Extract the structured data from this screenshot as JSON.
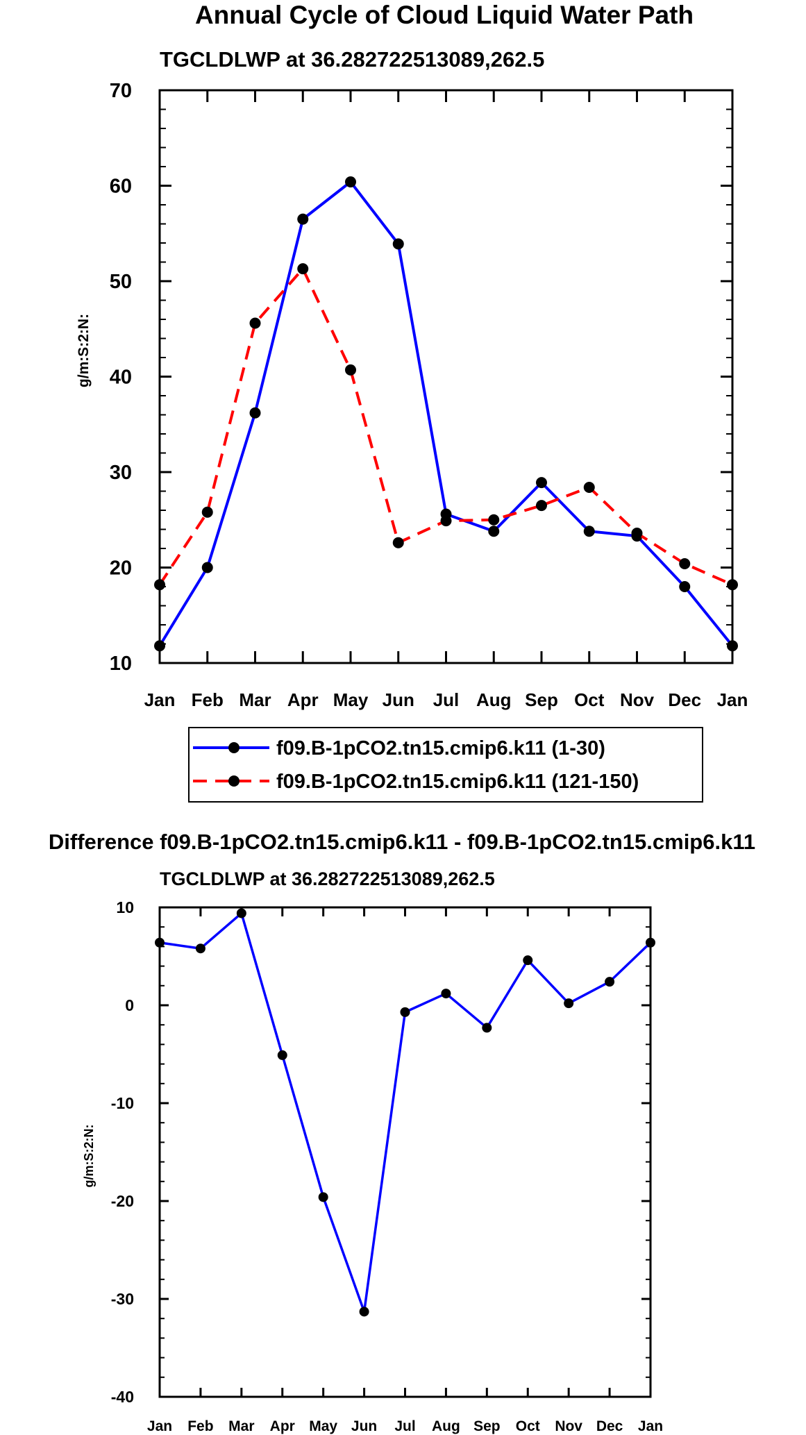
{
  "chart_data": [
    {
      "type": "line",
      "title": "Annual Cycle of Cloud Liquid Water Path",
      "subtitle": "TGCLDLWP at 36.282722513089,262.5",
      "xlabel": "",
      "ylabel": "g/m:S:2:N:",
      "categories": [
        "Jan",
        "Feb",
        "Mar",
        "Apr",
        "May",
        "Jun",
        "Jul",
        "Aug",
        "Sep",
        "Oct",
        "Nov",
        "Dec",
        "Jan"
      ],
      "ylim": [
        10,
        70
      ],
      "yticks": [
        10,
        20,
        30,
        40,
        50,
        60,
        70
      ],
      "grid": false,
      "legend": "bottom",
      "series": [
        {
          "name": "f09.B-1pCO2.tn15.cmip6.k11 (1-30)",
          "color": "#0000ff",
          "dash": "solid",
          "values": [
            11.8,
            20.0,
            36.2,
            56.5,
            60.4,
            53.9,
            25.6,
            23.8,
            28.9,
            23.8,
            23.3,
            18.0,
            11.8
          ]
        },
        {
          "name": "f09.B-1pCO2.tn15.cmip6.k11 (121-150)",
          "color": "#ff0000",
          "dash": "dashed",
          "values": [
            18.2,
            25.8,
            45.6,
            51.3,
            40.7,
            22.6,
            24.9,
            25.0,
            26.5,
            28.4,
            23.6,
            20.4,
            18.2
          ]
        }
      ]
    },
    {
      "type": "line",
      "title": "Difference f09.B-1pCO2.tn15.cmip6.k11 - f09.B-1pCO2.tn15.cmip6.k11",
      "subtitle": "TGCLDLWP at 36.282722513089,262.5",
      "xlabel": "",
      "ylabel": "g/m:S:2:N:",
      "categories": [
        "Jan",
        "Feb",
        "Mar",
        "Apr",
        "May",
        "Jun",
        "Jul",
        "Aug",
        "Sep",
        "Oct",
        "Nov",
        "Dec",
        "Jan"
      ],
      "ylim": [
        -40,
        10
      ],
      "yticks": [
        -40,
        -30,
        -20,
        -10,
        0,
        10
      ],
      "grid": false,
      "series": [
        {
          "name": "Difference",
          "color": "#0000ff",
          "dash": "solid",
          "values": [
            6.4,
            5.8,
            9.4,
            -5.1,
            -19.6,
            -31.3,
            -0.7,
            1.2,
            -2.3,
            4.6,
            0.2,
            2.4,
            6.4
          ]
        }
      ]
    }
  ]
}
